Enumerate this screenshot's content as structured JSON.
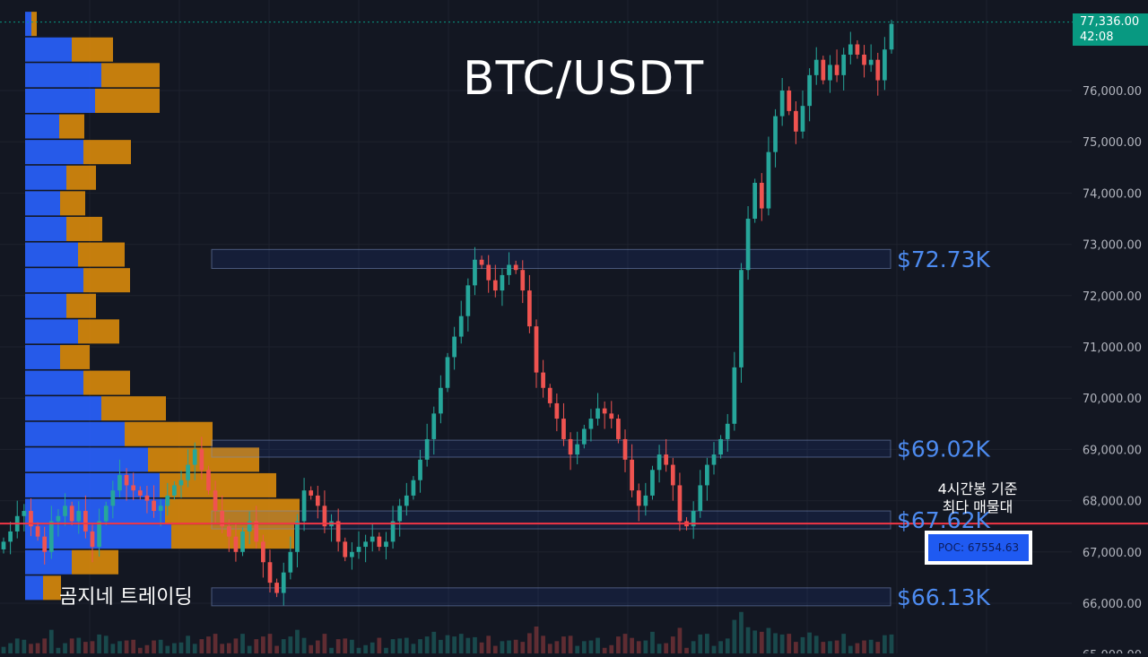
{
  "title": "BTC/USDT",
  "brand": "곰지네 트레이딩",
  "note_line1": "4시간봉 기준",
  "note_line2": "최다 매물대",
  "poc_label": "POC: 67554.63",
  "colors": {
    "background": "#131722",
    "up": "#26a69a",
    "down": "#ef5350",
    "profile_buy": "#2962ff",
    "profile_sell": "#d98a0b",
    "level_text": "#4d8bf0",
    "poc_line": "#f23645",
    "current_price": "#089981"
  },
  "chart_data": {
    "type": "candlestick",
    "title": "BTC/USDT",
    "ylim": [
      65000,
      77600
    ],
    "y_ticks": [
      "65,000.00",
      "66,000.00",
      "67,000.00",
      "68,000.00",
      "69,000.00",
      "70,000.00",
      "71,000.00",
      "72,000.00",
      "73,000.00",
      "74,000.00",
      "75,000.00",
      "76,000.00"
    ],
    "current_price": {
      "value": "77,336.00",
      "countdown": "42:08",
      "y": 77336
    },
    "poc": 67554.63,
    "levels": [
      {
        "label": "$72.73K",
        "low": 72530,
        "high": 72900
      },
      {
        "label": "$69.02K",
        "low": 68850,
        "high": 69180
      },
      {
        "label": "$67.62K",
        "low": 67450,
        "high": 67800
      },
      {
        "label": "$66.13K",
        "low": 65950,
        "high": 66300
      }
    ],
    "closes": [
      67200,
      67400,
      67700,
      67800,
      67500,
      67300,
      67000,
      67600,
      67700,
      67900,
      67600,
      67800,
      67400,
      67100,
      67600,
      67900,
      68200,
      68500,
      68300,
      68200,
      68100,
      68000,
      67800,
      67900,
      68100,
      68300,
      68400,
      68700,
      69000,
      68600,
      68200,
      67800,
      67500,
      67300,
      67000,
      67400,
      67600,
      67200,
      66800,
      66400,
      66200,
      66600,
      67000,
      67600,
      68200,
      68100,
      67900,
      67500,
      67600,
      67200,
      66900,
      67000,
      67100,
      67200,
      67300,
      67100,
      67200,
      67600,
      67900,
      68100,
      68400,
      68800,
      69200,
      69700,
      70200,
      70800,
      71200,
      71600,
      72200,
      72700,
      72600,
      72300,
      72100,
      72400,
      72600,
      72500,
      72100,
      71400,
      70500,
      70200,
      69900,
      69600,
      69200,
      68900,
      69100,
      69400,
      69600,
      69800,
      69700,
      69600,
      69200,
      68800,
      68200,
      67900,
      68100,
      68600,
      68900,
      68700,
      68300,
      67600,
      67500,
      67800,
      68300,
      68700,
      68900,
      69200,
      69500,
      70600,
      72500,
      73500,
      74200,
      73700,
      74800,
      75500,
      76000,
      75600,
      75200,
      75700,
      76300,
      76600,
      76200,
      76500,
      76300,
      76700,
      76900,
      76700,
      76500,
      76600,
      76200,
      76800,
      77300
    ],
    "volume_profile": [
      {
        "price": 77300,
        "buy": 7,
        "sell": 6
      },
      {
        "price": 76800,
        "buy": 52,
        "sell": 46
      },
      {
        "price": 76300,
        "buy": 85,
        "sell": 65
      },
      {
        "price": 75800,
        "buy": 78,
        "sell": 72
      },
      {
        "price": 75300,
        "buy": 38,
        "sell": 28
      },
      {
        "price": 74800,
        "buy": 65,
        "sell": 53
      },
      {
        "price": 74300,
        "buy": 46,
        "sell": 33
      },
      {
        "price": 73800,
        "buy": 39,
        "sell": 28
      },
      {
        "price": 73300,
        "buy": 46,
        "sell": 40
      },
      {
        "price": 72800,
        "buy": 59,
        "sell": 52
      },
      {
        "price": 72300,
        "buy": 65,
        "sell": 52
      },
      {
        "price": 71800,
        "buy": 46,
        "sell": 33
      },
      {
        "price": 71300,
        "buy": 59,
        "sell": 46
      },
      {
        "price": 70800,
        "buy": 39,
        "sell": 33
      },
      {
        "price": 70300,
        "buy": 65,
        "sell": 52
      },
      {
        "price": 69800,
        "buy": 85,
        "sell": 72
      },
      {
        "price": 69300,
        "buy": 111,
        "sell": 98
      },
      {
        "price": 68800,
        "buy": 137,
        "sell": 124
      },
      {
        "price": 68300,
        "buy": 150,
        "sell": 130
      },
      {
        "price": 67800,
        "buy": 156,
        "sell": 150
      },
      {
        "price": 67300,
        "buy": 163,
        "sell": 137
      },
      {
        "price": 66800,
        "buy": 52,
        "sell": 52
      },
      {
        "price": 66300,
        "buy": 20,
        "sell": 20
      }
    ]
  }
}
